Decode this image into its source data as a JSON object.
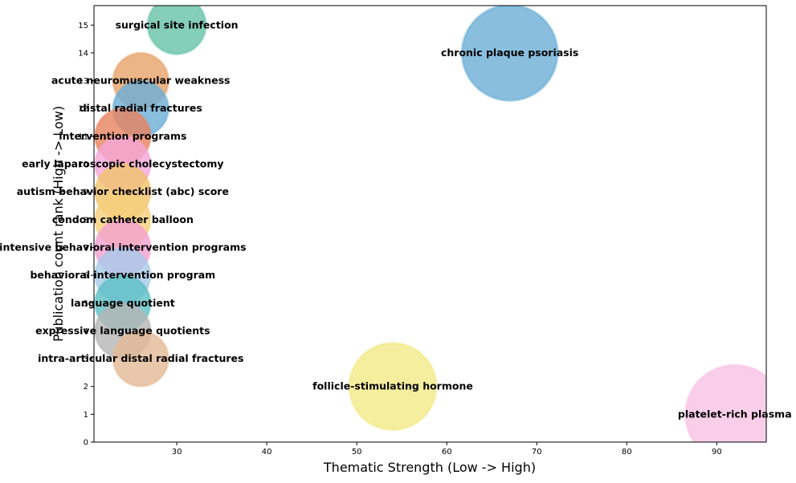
{
  "chart_data": {
    "type": "scatter",
    "subtype": "bubble",
    "title": "",
    "xlabel": "Thematic Strength (Low -> High)",
    "ylabel": "Publication count rank (High -> Low)",
    "xlim": [
      20.8,
      95.5
    ],
    "ylim": [
      0,
      15.7
    ],
    "xticks": [
      30,
      40,
      50,
      60,
      70,
      80,
      90
    ],
    "yticks": [
      0,
      1,
      2,
      3,
      4,
      5,
      6,
      7,
      8,
      9,
      10,
      11,
      12,
      13,
      14,
      15
    ],
    "grid": false,
    "legend": "none",
    "points": [
      {
        "label": "surgical site infection",
        "x": 30,
        "y": 15,
        "size": 1.0,
        "color": "#66c2a5"
      },
      {
        "label": "chronic plaque psoriasis",
        "x": 67,
        "y": 14,
        "size": 1.65,
        "color": "#6baed6"
      },
      {
        "label": "acute neuromuscular weakness",
        "x": 26,
        "y": 13,
        "size": 0.95,
        "color": "#e6a36a"
      },
      {
        "label": "distal radial fractures",
        "x": 26,
        "y": 12,
        "size": 0.95,
        "color": "#6baed6"
      },
      {
        "label": "intervention programs",
        "x": 24,
        "y": 11,
        "size": 0.95,
        "color": "#e8825e"
      },
      {
        "label": "early laparoscopic cholecystectomy",
        "x": 24,
        "y": 10,
        "size": 0.95,
        "color": "#f4a6d9"
      },
      {
        "label": "autism behavior checklist (abc) score",
        "x": 24,
        "y": 9,
        "size": 0.95,
        "color": "#f0c26b"
      },
      {
        "label": "condom catheter balloon",
        "x": 24,
        "y": 8,
        "size": 0.95,
        "color": "#f5d07a"
      },
      {
        "label": "intensive behavioral intervention programs",
        "x": 24,
        "y": 7,
        "size": 0.95,
        "color": "#f2a0d0"
      },
      {
        "label": "behavioral intervention program",
        "x": 24,
        "y": 6,
        "size": 0.95,
        "color": "#a8c9e8"
      },
      {
        "label": "language quotient",
        "x": 24,
        "y": 5,
        "size": 0.95,
        "color": "#5bbfc4"
      },
      {
        "label": "expressive language quotients",
        "x": 24,
        "y": 4,
        "size": 0.95,
        "color": "#b5b5b5"
      },
      {
        "label": "intra-articular distal radial fractures",
        "x": 26,
        "y": 3,
        "size": 0.95,
        "color": "#e3b996"
      },
      {
        "label": "follicle-stimulating hormone",
        "x": 54,
        "y": 2,
        "size": 1.5,
        "color": "#f2ea86"
      },
      {
        "label": "platelet-rich plasma",
        "x": 92,
        "y": 1,
        "size": 1.7,
        "color": "#f8c2e4"
      }
    ]
  }
}
